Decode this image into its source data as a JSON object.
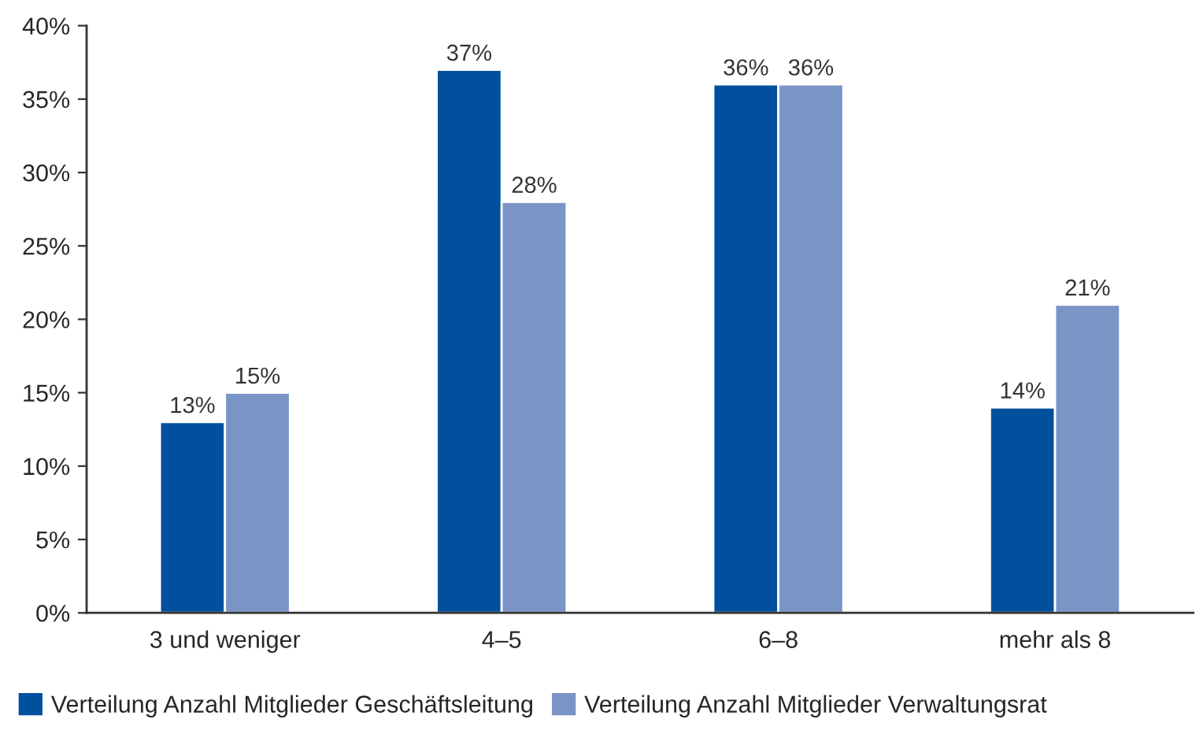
{
  "chart_data": {
    "type": "bar",
    "categories": [
      "3 und weniger",
      "4–5",
      "6–8",
      "mehr als 8"
    ],
    "series": [
      {
        "name": "Verteilung Anzahl Mitglieder Geschäftsleitung",
        "color": "#00509e",
        "values": [
          13,
          37,
          36,
          14
        ],
        "value_labels": [
          "13%",
          "37%",
          "36%",
          "14%"
        ]
      },
      {
        "name": "Verteilung Anzahl Mitglieder Verwaltungsrat",
        "color": "#7b94c6",
        "values": [
          15,
          28,
          36,
          21
        ],
        "value_labels": [
          "15%",
          "28%",
          "36%",
          "21%"
        ]
      }
    ],
    "ylim": [
      0,
      40
    ],
    "yticks": [
      {
        "value": 0,
        "label": "0%"
      },
      {
        "value": 5,
        "label": "5%"
      },
      {
        "value": 10,
        "label": "10%"
      },
      {
        "value": 15,
        "label": "15%"
      },
      {
        "value": 20,
        "label": "20%"
      },
      {
        "value": 25,
        "label": "25%"
      },
      {
        "value": 30,
        "label": "30%"
      },
      {
        "value": 35,
        "label": "35%"
      },
      {
        "value": 40,
        "label": "40%"
      }
    ],
    "grid": false,
    "legend": "bottom"
  }
}
